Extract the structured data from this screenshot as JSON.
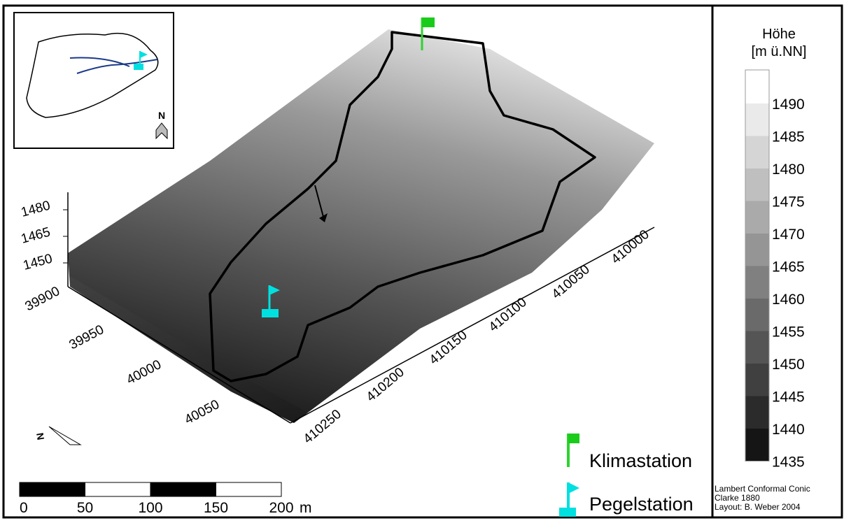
{
  "legend": {
    "title_lines": [
      "Höhe",
      "[m ü.NN]"
    ],
    "classes": [
      1490,
      1485,
      1480,
      1475,
      1470,
      1465,
      1460,
      1455,
      1450,
      1445,
      1440,
      1435
    ]
  },
  "axes": {
    "z_ticks": [
      1480,
      1465,
      1450
    ],
    "y_ticks": [
      39900,
      39950,
      40000,
      40050
    ],
    "x_ticks": [
      410000,
      410050,
      410100,
      410150,
      410200,
      410250
    ]
  },
  "scale_bar": {
    "ticks": [
      0,
      50,
      100,
      150,
      200
    ],
    "unit": "m"
  },
  "stations": [
    "Klimastation",
    "Pegelstation"
  ],
  "inset": {
    "north": "N"
  },
  "credits": [
    "Lambert Conformal Conic",
    "Clarke 1880",
    "Layout: B. Weber 2004"
  ]
}
